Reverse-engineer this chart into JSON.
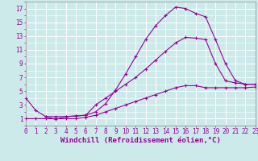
{
  "xlabel": "Windchill (Refroidissement éolien,°C)",
  "bg_color": "#cceaea",
  "line_color": "#990099",
  "grid_color": "#ffffff",
  "line1_x": [
    0,
    1,
    2,
    3,
    4,
    5,
    6,
    7,
    8,
    9,
    10,
    11,
    12,
    13,
    14,
    15,
    16,
    17,
    18,
    19,
    20,
    21,
    22,
    23
  ],
  "line1_y": [
    4.0,
    2.2,
    1.3,
    0.9,
    1.3,
    1.4,
    1.5,
    2.0,
    3.2,
    5.2,
    7.5,
    10.0,
    12.5,
    14.5,
    16.0,
    17.2,
    17.0,
    16.3,
    15.8,
    12.5,
    9.0,
    6.5,
    6.0,
    6.0
  ],
  "line2_x": [
    2,
    3,
    4,
    5,
    6,
    7,
    8,
    9,
    10,
    11,
    12,
    13,
    14,
    15,
    16,
    17,
    18,
    19,
    20,
    21,
    22,
    23
  ],
  "line2_y": [
    1.3,
    1.3,
    1.3,
    1.4,
    1.5,
    3.0,
    4.0,
    5.0,
    6.0,
    7.0,
    8.2,
    9.5,
    10.8,
    12.0,
    12.8,
    12.7,
    12.5,
    9.0,
    6.5,
    6.2,
    6.0,
    6.0
  ],
  "line3_x": [
    0,
    1,
    2,
    3,
    4,
    5,
    6,
    7,
    8,
    9,
    10,
    11,
    12,
    13,
    14,
    15,
    16,
    17,
    18,
    19,
    20,
    21,
    22,
    23
  ],
  "line3_y": [
    1.0,
    1.0,
    1.0,
    1.0,
    1.0,
    1.0,
    1.2,
    1.5,
    2.0,
    2.5,
    3.0,
    3.5,
    4.0,
    4.5,
    5.0,
    5.5,
    5.8,
    5.8,
    5.5,
    5.5,
    5.5,
    5.5,
    5.5,
    5.6
  ],
  "xlim": [
    0,
    23
  ],
  "ylim": [
    0,
    18
  ],
  "xticks": [
    0,
    1,
    2,
    3,
    4,
    5,
    6,
    7,
    8,
    9,
    10,
    11,
    12,
    13,
    14,
    15,
    16,
    17,
    18,
    19,
    20,
    21,
    22,
    23
  ],
  "yticks": [
    1,
    3,
    5,
    7,
    9,
    11,
    13,
    15,
    17
  ],
  "title_fontsize": 6,
  "label_fontsize": 6.5,
  "tick_fontsize": 5.5
}
